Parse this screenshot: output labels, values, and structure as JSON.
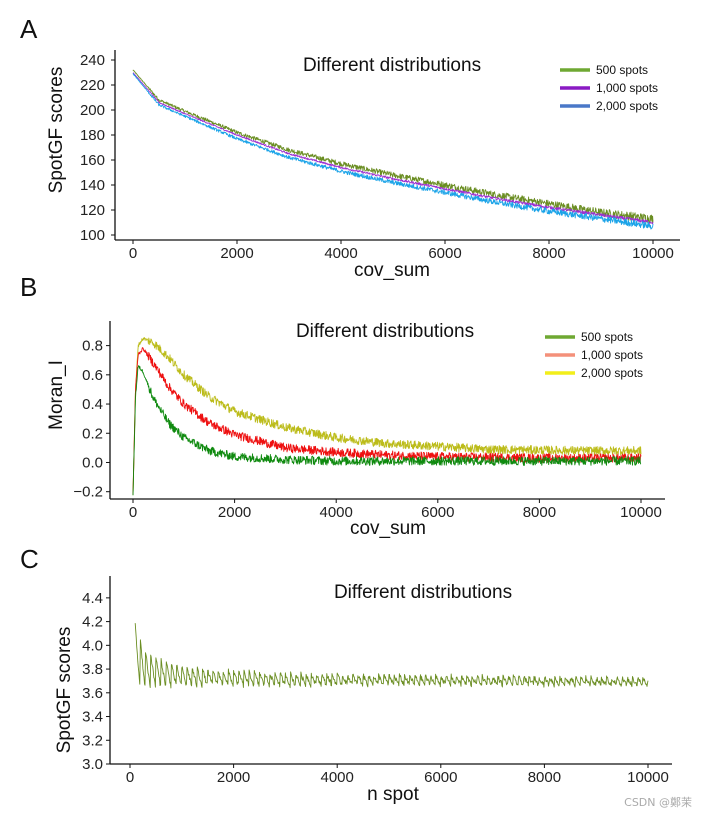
{
  "watermark": "CSDN @鄭茉",
  "chart_data": [
    {
      "panel": "A",
      "type": "line",
      "title": "Different distributions",
      "xlabel": "cov_sum",
      "ylabel": "SpotGF scores",
      "xlim": [
        0,
        10000
      ],
      "ylim": [
        100,
        240
      ],
      "xticks": [
        0,
        2000,
        4000,
        6000,
        8000,
        10000
      ],
      "yticks": [
        100,
        120,
        140,
        160,
        180,
        200,
        220,
        240
      ],
      "xtick_labels": [
        "0",
        "2000",
        "4000",
        "6000",
        "8000",
        "10000"
      ],
      "ytick_labels": [
        "100",
        "120",
        "140",
        "160",
        "180",
        "200",
        "220",
        "240"
      ],
      "legend_position": "top-right",
      "legend": [
        {
          "name": "500 spots",
          "color": "#6fa832"
        },
        {
          "name": "1,000 spots",
          "color": "#8a1ac4"
        },
        {
          "name": "2,000 spots",
          "color": "#4a78c8"
        }
      ],
      "series": [
        {
          "name": "500 spots",
          "color": "#6b8e23",
          "noise": 2.5,
          "x": [
            0,
            500,
            1000,
            2000,
            3000,
            4000,
            5000,
            6000,
            7000,
            8000,
            9000,
            10000
          ],
          "y": [
            232,
            208,
            199,
            182,
            168,
            157,
            148,
            140,
            132,
            125,
            118,
            113
          ]
        },
        {
          "name": "1,000 spots",
          "color": "#9b30d0",
          "noise": 1.0,
          "x": [
            0,
            500,
            1000,
            2000,
            3000,
            4000,
            5000,
            6000,
            7000,
            8000,
            9000,
            10000
          ],
          "y": [
            230,
            206,
            197,
            180,
            165,
            154,
            145,
            137,
            129,
            122,
            116,
            110
          ]
        },
        {
          "name": "2,000 spots",
          "color": "#1aa3e8",
          "noise": 2.0,
          "x": [
            0,
            500,
            1000,
            2000,
            3000,
            4000,
            5000,
            6000,
            7000,
            8000,
            9000,
            10000
          ],
          "y": [
            229,
            204,
            195,
            177,
            162,
            151,
            142,
            134,
            126,
            119,
            113,
            107
          ]
        }
      ]
    },
    {
      "panel": "B",
      "type": "line",
      "title": "Different distributions",
      "xlabel": "cov_sum",
      "ylabel": "Moran_I",
      "xlim": [
        0,
        10000
      ],
      "ylim": [
        -0.25,
        0.9
      ],
      "xticks": [
        0,
        2000,
        4000,
        6000,
        8000,
        10000
      ],
      "yticks": [
        -0.2,
        0.0,
        0.2,
        0.4,
        0.6,
        0.8
      ],
      "xtick_labels": [
        "0",
        "2000",
        "4000",
        "6000",
        "8000",
        "10000"
      ],
      "ytick_labels": [
        "−0.2",
        "0.0",
        "0.2",
        "0.4",
        "0.6",
        "0.8"
      ],
      "legend_position": "top-right",
      "legend": [
        {
          "name": "500 spots",
          "color": "#6fa832"
        },
        {
          "name": "1,000 spots",
          "color": "#f4907a"
        },
        {
          "name": "2,000 spots",
          "color": "#f2ee1a"
        }
      ],
      "series": [
        {
          "name": "2,000 spots",
          "color": "#bcbc1a",
          "noise": 0.03,
          "x": [
            0,
            50,
            100,
            200,
            400,
            700,
            1000,
            1500,
            2000,
            3000,
            4000,
            5000,
            6000,
            7000,
            8000,
            9000,
            10000
          ],
          "y": [
            -0.22,
            0.5,
            0.8,
            0.85,
            0.82,
            0.72,
            0.6,
            0.45,
            0.35,
            0.24,
            0.17,
            0.13,
            0.11,
            0.09,
            0.085,
            0.08,
            0.08
          ]
        },
        {
          "name": "1,000 spots",
          "color": "#ee1010",
          "noise": 0.03,
          "x": [
            0,
            50,
            100,
            200,
            400,
            700,
            1000,
            1500,
            2000,
            3000,
            4000,
            5000,
            6000,
            7000,
            8000,
            9000,
            10000
          ],
          "y": [
            -0.22,
            0.5,
            0.74,
            0.78,
            0.68,
            0.52,
            0.4,
            0.27,
            0.19,
            0.1,
            0.07,
            0.05,
            0.04,
            0.035,
            0.03,
            0.03,
            0.03
          ]
        },
        {
          "name": "500 spots",
          "color": "#0f8a0f",
          "noise": 0.03,
          "x": [
            0,
            50,
            100,
            200,
            400,
            700,
            1000,
            1500,
            2000,
            3000,
            4000,
            5000,
            6000,
            7000,
            8000,
            9000,
            10000
          ],
          "y": [
            -0.22,
            0.45,
            0.66,
            0.62,
            0.44,
            0.27,
            0.17,
            0.08,
            0.04,
            0.02,
            0.01,
            0.01,
            0.01,
            0.01,
            0.01,
            0.01,
            0.01
          ]
        }
      ]
    },
    {
      "panel": "C",
      "type": "line",
      "title": "Different distributions",
      "xlabel": "n spot",
      "ylabel": "SpotGF scores",
      "xlim": [
        0,
        10000
      ],
      "ylim": [
        3.0,
        4.5
      ],
      "xticks": [
        0,
        2000,
        4000,
        6000,
        8000,
        10000
      ],
      "yticks": [
        3.0,
        3.2,
        3.4,
        3.6,
        3.8,
        4.0,
        4.2,
        4.4
      ],
      "xtick_labels": [
        "0",
        "2000",
        "4000",
        "6000",
        "8000",
        "10000"
      ],
      "ytick_labels": [
        "3.0",
        "3.2",
        "3.4",
        "3.6",
        "3.8",
        "4.0",
        "4.2",
        "4.4"
      ],
      "series": [
        {
          "name": "",
          "color": "#6b8e23",
          "sawtooth_period": 100,
          "noise": 0.02,
          "x": [
            100,
            300,
            600,
            1000,
            1500,
            2000,
            3000,
            4000,
            6000,
            8000,
            10000
          ],
          "y_high": [
            4.18,
            3.95,
            3.88,
            3.82,
            3.79,
            3.78,
            3.76,
            3.75,
            3.74,
            3.73,
            3.72
          ],
          "y_low": [
            3.62,
            3.62,
            3.63,
            3.64,
            3.65,
            3.65,
            3.65,
            3.66,
            3.66,
            3.66,
            3.66
          ]
        }
      ]
    }
  ]
}
